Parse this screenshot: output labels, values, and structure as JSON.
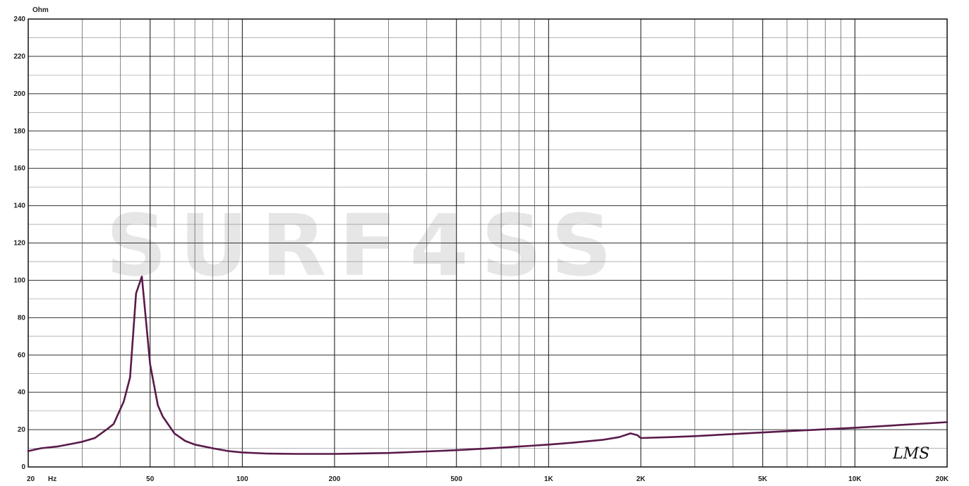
{
  "chart_data": {
    "type": "line",
    "x_scale": "log",
    "y_unit_label": "Ohm",
    "x_unit_label": "Hz",
    "xlim": [
      20,
      20000
    ],
    "ylim": [
      0,
      240
    ],
    "grid": true,
    "y_ticks": [
      0,
      20,
      40,
      60,
      80,
      100,
      120,
      140,
      160,
      180,
      200,
      220,
      240
    ],
    "y_tick_labels": [
      "0",
      "20",
      "40",
      "60",
      "80",
      "100",
      "120",
      "140",
      "160",
      "180",
      "200",
      "220",
      "240"
    ],
    "x_ticks": [
      20,
      50,
      100,
      200,
      500,
      1000,
      2000,
      5000,
      10000,
      20000
    ],
    "x_tick_labels": [
      "20",
      "50",
      "100",
      "200",
      "500",
      "1K",
      "2K",
      "5K",
      "10K",
      "20K"
    ],
    "series": [
      {
        "color": "#5a1a4a",
        "x": [
          20,
          22,
          25,
          28,
          30,
          33,
          36,
          38,
          41,
          43,
          45,
          47,
          50,
          53,
          55,
          60,
          65,
          70,
          80,
          90,
          100,
          120,
          150,
          200,
          300,
          400,
          500,
          700,
          1000,
          1200,
          1500,
          1700,
          1850,
          1950,
          2000,
          2500,
          3000,
          5000,
          10000,
          20000
        ],
        "y": [
          8.5,
          10,
          11,
          12.5,
          13.5,
          15.5,
          20,
          23,
          35,
          48,
          93,
          102,
          55,
          33,
          27,
          18,
          14,
          12,
          10,
          8.5,
          7.8,
          7.2,
          7,
          7,
          7.5,
          8.3,
          9,
          10.3,
          12,
          13,
          14.5,
          16,
          18,
          17,
          15.5,
          16,
          16.5,
          18.5,
          21,
          24
        ]
      }
    ]
  },
  "watermark": "SURF4SS",
  "logo": "LMS"
}
